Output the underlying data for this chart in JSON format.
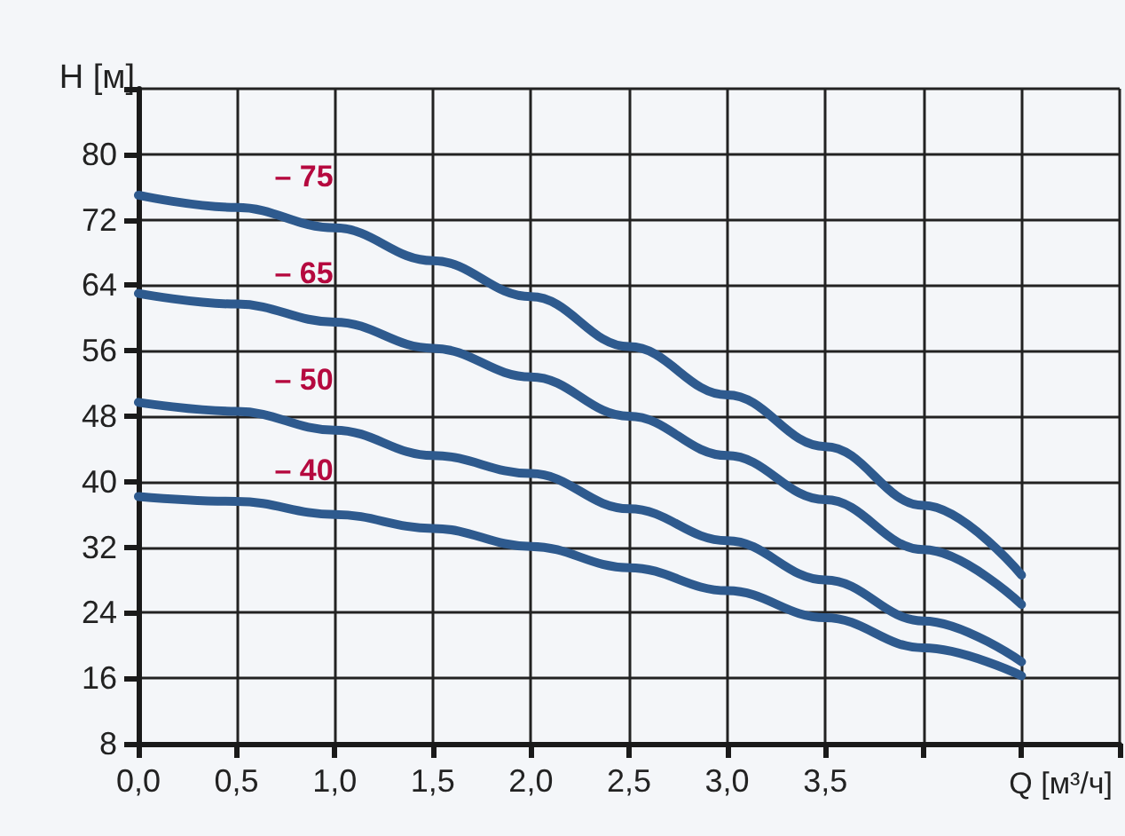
{
  "chart_data": {
    "type": "line",
    "xlabel": "Q [м³/ч]",
    "ylabel": "H [м]",
    "x": [
      0,
      0.5,
      1.0,
      1.5,
      2.0,
      2.5,
      3.0,
      3.5,
      4.0,
      4.5
    ],
    "series": [
      {
        "name": "– 75",
        "color": "#2e5a8e",
        "values": [
          75,
          73.5,
          71,
          67,
          62.6,
          56.5,
          50.6,
          44.3,
          37.1,
          28.6
        ]
      },
      {
        "name": "– 65",
        "color": "#2e5a8e",
        "values": [
          63,
          61.7,
          59.5,
          56.3,
          52.8,
          48,
          43.2,
          37.8,
          31.7,
          25
        ]
      },
      {
        "name": "– 50",
        "color": "#2e5a8e",
        "values": [
          49.7,
          48.6,
          46.3,
          43.2,
          41,
          36.7,
          32.8,
          28,
          23,
          18
        ]
      },
      {
        "name": "– 40",
        "color": "#2e5a8e",
        "values": [
          38.2,
          37.6,
          36,
          34.3,
          32.1,
          29.5,
          26.7,
          23.4,
          19.7,
          16.3
        ]
      }
    ],
    "xlim": [
      0,
      5
    ],
    "xticks": [
      {
        "value": 0,
        "label": "0,0"
      },
      {
        "value": 0.5,
        "label": "0,5"
      },
      {
        "value": 1,
        "label": "1,0"
      },
      {
        "value": 1.5,
        "label": "1,5"
      },
      {
        "value": 2,
        "label": "2,0"
      },
      {
        "value": 2.5,
        "label": "2,5"
      },
      {
        "value": 3,
        "label": "3,0"
      },
      {
        "value": 3.5,
        "label": "3,5"
      },
      {
        "value": 4,
        "label": null
      },
      {
        "value": 4.5,
        "label": null
      },
      {
        "value": 5,
        "label": null
      }
    ],
    "ylim": [
      8,
      88
    ],
    "yticks": [
      8,
      16,
      24,
      32,
      40,
      48,
      56,
      64,
      72,
      80,
      {
        "value": 88,
        "label": null
      }
    ],
    "grid": true,
    "legend": false,
    "marker": "none",
    "line_style": "solid"
  }
}
